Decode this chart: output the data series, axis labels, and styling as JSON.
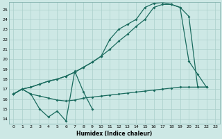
{
  "xlabel": "Humidex (Indice chaleur)",
  "xlim": [
    -0.5,
    23.5
  ],
  "ylim": [
    13.5,
    25.7
  ],
  "xticks": [
    0,
    1,
    2,
    3,
    4,
    5,
    6,
    7,
    8,
    9,
    10,
    11,
    12,
    13,
    14,
    15,
    16,
    17,
    18,
    19,
    20,
    21,
    22,
    23
  ],
  "yticks": [
    14,
    15,
    16,
    17,
    18,
    19,
    20,
    21,
    22,
    23,
    24,
    25
  ],
  "background_color": "#cde8e5",
  "grid_color": "#aacfcb",
  "line_color": "#1a6b5e",
  "line1_x": [
    0,
    1,
    2,
    3,
    4,
    5,
    6,
    7,
    8,
    9
  ],
  "line1_y": [
    16.5,
    17.0,
    16.5,
    15.0,
    14.2,
    14.8,
    13.8,
    18.8,
    16.7,
    15.0
  ],
  "line2_x": [
    0,
    1,
    2,
    3,
    4,
    5,
    6,
    7,
    8,
    9,
    10,
    11,
    12,
    13,
    14,
    15,
    16,
    17,
    18,
    19,
    20,
    21,
    22
  ],
  "line2_y": [
    16.5,
    17.0,
    16.5,
    16.3,
    16.1,
    15.9,
    15.8,
    15.9,
    16.1,
    16.2,
    16.3,
    16.4,
    16.5,
    16.6,
    16.7,
    16.8,
    16.9,
    17.0,
    17.1,
    17.2,
    17.2,
    17.2,
    17.2
  ],
  "line3_x": [
    0,
    1,
    2,
    3,
    4,
    5,
    6,
    7,
    8,
    9,
    10,
    11,
    12,
    13,
    14,
    15,
    16,
    17,
    18,
    19,
    20,
    21,
    22
  ],
  "line3_y": [
    16.5,
    17.0,
    17.2,
    17.5,
    17.8,
    18.0,
    18.3,
    18.7,
    19.2,
    19.7,
    20.3,
    21.0,
    21.8,
    22.5,
    23.3,
    24.0,
    25.2,
    25.5,
    25.5,
    25.2,
    24.3,
    17.2,
    17.2
  ],
  "line4_x": [
    0,
    1,
    2,
    3,
    4,
    5,
    6,
    7,
    8,
    9,
    10,
    11,
    12,
    13,
    14,
    15,
    16,
    17,
    18,
    19,
    20,
    21,
    22
  ],
  "line4_y": [
    16.5,
    17.0,
    17.2,
    17.5,
    17.8,
    18.0,
    18.3,
    18.7,
    19.2,
    19.7,
    20.3,
    22.0,
    23.0,
    23.5,
    24.0,
    25.2,
    25.6,
    25.7,
    25.5,
    25.2,
    19.8,
    18.5,
    17.2
  ],
  "figsize": [
    3.2,
    2.0
  ],
  "dpi": 100
}
